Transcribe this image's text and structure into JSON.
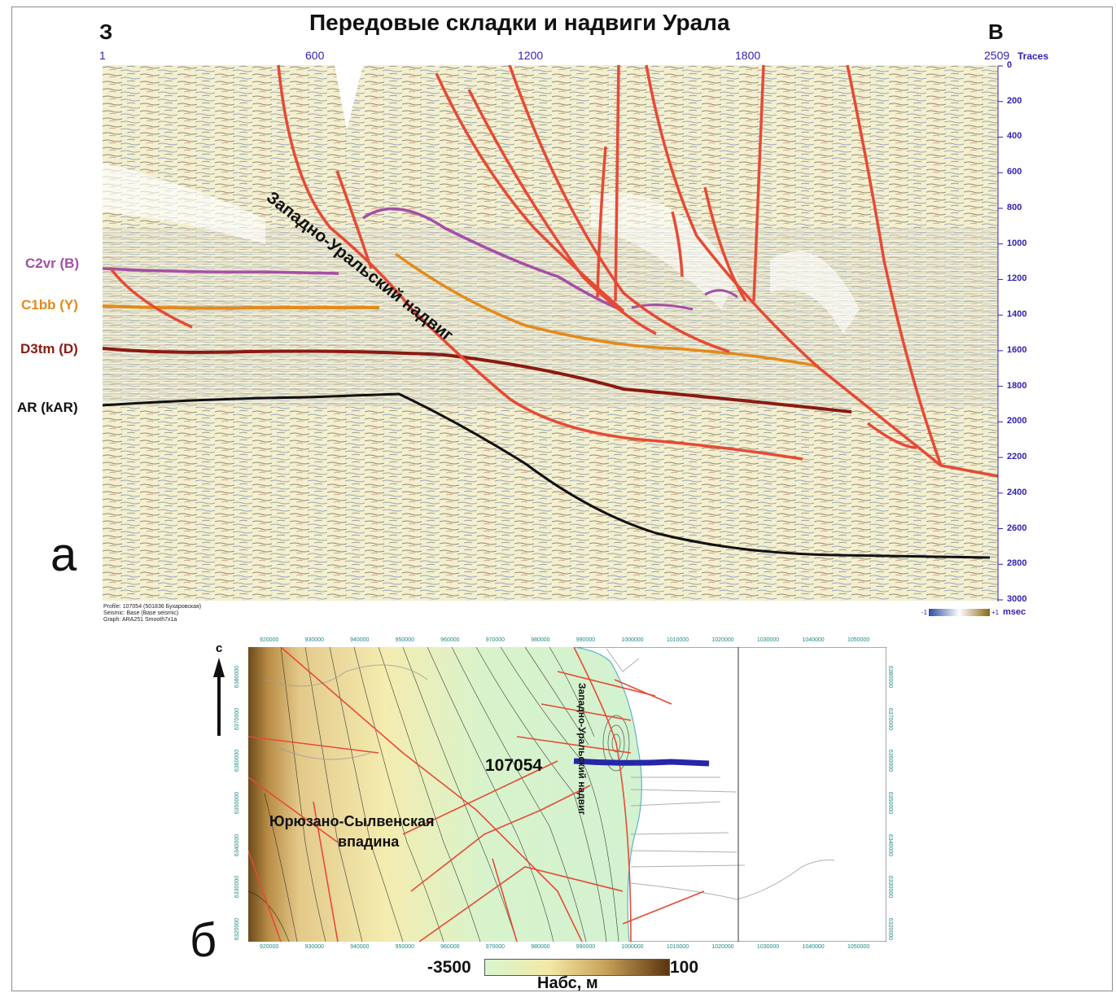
{
  "section": {
    "title": "Передовые складки и надвиги Урала",
    "west": "З",
    "east": "В",
    "trace_ticks": [
      "1",
      "600",
      "1200",
      "1800",
      "2509"
    ],
    "traces_unit": "Traces",
    "time_ticks": [
      "0",
      "200",
      "400",
      "600",
      "800",
      "1000",
      "1200",
      "1400",
      "1600",
      "1800",
      "2000",
      "2200",
      "2400",
      "2600",
      "2800",
      "3000"
    ],
    "horizons": [
      {
        "label": "C2vr (B)",
        "color": "#a64ea6"
      },
      {
        "label": "C1bb (Y)",
        "color": "#e38a1b"
      },
      {
        "label": "D3tm (D)",
        "color": "#8b1a12"
      },
      {
        "label": "AR (kAR)",
        "color": "#111111"
      }
    ],
    "thrust_label": "Западно-Уральский надвиг",
    "panel_letter": "а",
    "meta": [
      "Profile: 107054 (501836 Бухаровская)",
      "Seismic: Base (Base seismic)",
      "Graph: ARA251 Smooth7x1a"
    ],
    "colorbar": {
      "min": "-1",
      "max": "+1",
      "unit": "msec"
    }
  },
  "map": {
    "north": "с",
    "x_ticks": [
      "920000",
      "930000",
      "940000",
      "950000",
      "960000",
      "970000",
      "980000",
      "990000",
      "1000000",
      "1010000",
      "1020000",
      "1030000",
      "1040000",
      "1050000"
    ],
    "y_ticks": [
      "6380000",
      "6370000",
      "6360000",
      "6350000",
      "6340000",
      "6330000",
      "6320000"
    ],
    "profile_label": "107054",
    "depression_label_1": "Юрюзано-Сылвенская",
    "depression_label_2": "впадина",
    "thrust_label": "Западно-Уральский надвиг",
    "panel_letter": "б",
    "legend": {
      "min": "-3500",
      "max": "100",
      "label": "Набс, м"
    },
    "colors": {
      "low": "#d9f5cf",
      "mid": "#f3e8a6",
      "high": "#5a3410",
      "fault": "#e64a35",
      "profile": "#2626a8"
    }
  }
}
